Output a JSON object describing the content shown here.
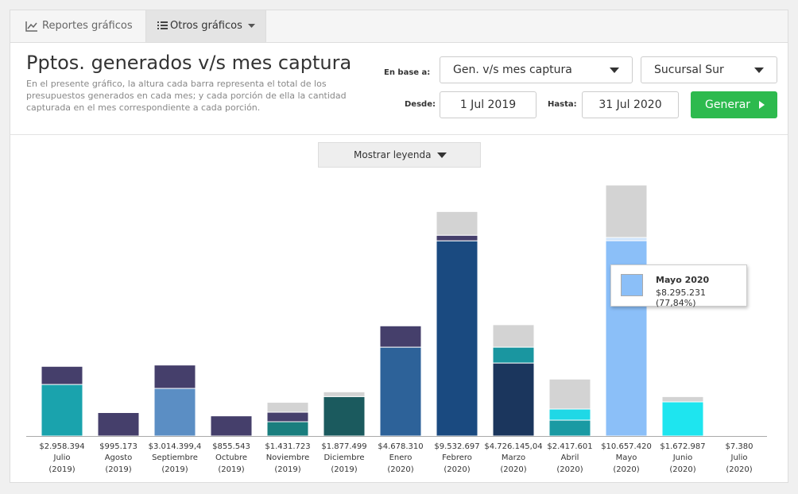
{
  "tabs": [
    {
      "label": "Reportes gráficos"
    },
    {
      "label": "Otros gráficos"
    }
  ],
  "header": {
    "title": "Pptos. generados v/s mes captura",
    "description": "En el presente gráfico, la altura cada barra representa el total de los presupuestos generados en cada mes; y cada porción de ella la cantidad capturada en el mes correspondiente a cada porción."
  },
  "form": {
    "base_label": "En base a:",
    "base_value": "Gen. v/s mes captura",
    "branch": "Sucursal Sur",
    "from_label": "Desde:",
    "from": "1 Jul 2019",
    "to_label": "Hasta:",
    "to": "31 Jul 2020",
    "button": "Generar"
  },
  "legend_button": "Mostrar leyenda",
  "tooltip": {
    "title": "Mayo 2020",
    "text": "$8.295.231 (77,84%)",
    "color": "#8bbff8"
  },
  "chart_data": {
    "type": "bar",
    "categories": [
      "Julio",
      "Agosto",
      "Septiembre",
      "Octubre",
      "Noviembre",
      "Diciembre",
      "Enero",
      "Febrero",
      "Marzo",
      "Abril",
      "Mayo",
      "Junio",
      "Julio"
    ],
    "years": [
      "(2019)",
      "(2019)",
      "(2019)",
      "(2019)",
      "(2019)",
      "(2019)",
      "(2020)",
      "(2020)",
      "(2020)",
      "(2020)",
      "(2020)",
      "(2020)",
      "(2020)"
    ],
    "values": [
      2958394,
      995173,
      3014399.4,
      855543,
      1431723,
      1877499,
      4678310,
      9532697,
      4726145.04,
      2417601,
      10657420,
      1672987,
      7380
    ],
    "value_labels": [
      "$2.958.394",
      "$995.173",
      "$3.014.399,4",
      "$855.543",
      "$1.431.723",
      "$1.877.499",
      "$4.678.310",
      "$9.532.697",
      "$4.726.145,04",
      "$2.417.601",
      "$10.657.420",
      "$1.672.987",
      "$7.380"
    ],
    "segments": [
      [
        {
          "color": "#1aa3ad",
          "value": 2190000
        },
        {
          "color": "#453f6b",
          "value": 768394
        }
      ],
      [
        {
          "color": "#453f6b",
          "value": 995173
        }
      ],
      [
        {
          "color": "#5b8ec4",
          "value": 2022000
        },
        {
          "color": "#453f6b",
          "value": 992399.4
        }
      ],
      [
        {
          "color": "#453f6b",
          "value": 855543
        }
      ],
      [
        {
          "color": "#1a7e7e",
          "value": 607000
        },
        {
          "color": "#453f6b",
          "value": 404000
        },
        {
          "color": "#d3d3d3",
          "value": 420723
        }
      ],
      [
        {
          "color": "#1b5a5e",
          "value": 1675499
        },
        {
          "color": "#d3d3d3",
          "value": 202000
        }
      ],
      [
        {
          "color": "#2d6299",
          "value": 3774000
        },
        {
          "color": "#453f6b",
          "value": 904310
        }
      ],
      [
        {
          "color": "#1a4a80",
          "value": 8290000
        },
        {
          "color": "#453f6b",
          "value": 236000
        },
        {
          "color": "#d3d3d3",
          "value": 1006697
        }
      ],
      [
        {
          "color": "#1b365d",
          "value": 3100000
        },
        {
          "color": "#1a96a0",
          "value": 674000
        },
        {
          "color": "#d3d3d3",
          "value": 952145.04
        }
      ],
      [
        {
          "color": "#1a9aa3",
          "value": 674000
        },
        {
          "color": "#1fd8e6",
          "value": 472000
        },
        {
          "color": "#d3d3d3",
          "value": 1271601
        }
      ],
      [
        {
          "color": "#8bbff8",
          "value": 8295231
        },
        {
          "color": "#cfe4fb",
          "value": 135000
        },
        {
          "color": "#d3d3d3",
          "value": 2227189
        }
      ],
      [
        {
          "color": "#1ee5ef",
          "value": 1450000
        },
        {
          "color": "#d3d3d3",
          "value": 222987
        }
      ],
      [
        {
          "color": "#8bbff8",
          "value": 7380
        }
      ]
    ]
  }
}
